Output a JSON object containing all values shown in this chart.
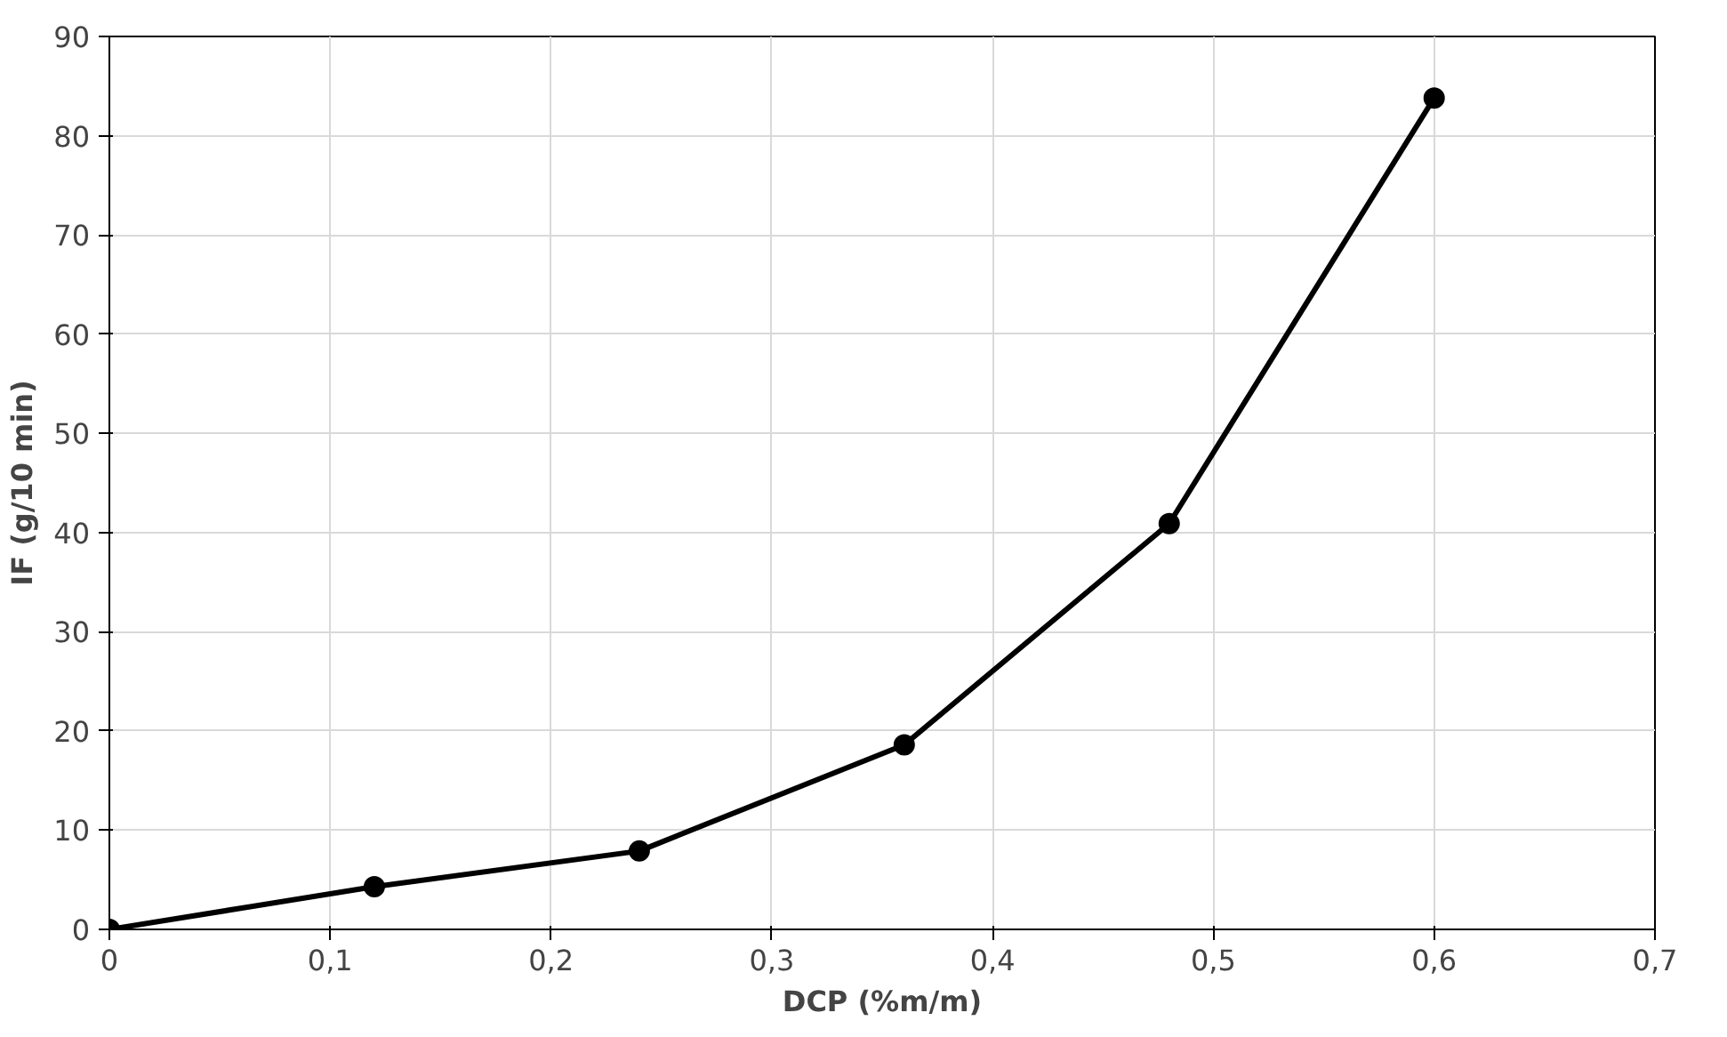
{
  "chart_data": {
    "type": "line",
    "xlabel": "DCP (%m/m)",
    "ylabel": "IF (g/10 min)",
    "x": [
      0,
      0.12,
      0.24,
      0.36,
      0.48,
      0.6
    ],
    "series": [
      {
        "color": "#000000",
        "values": [
          0,
          4.3,
          7.9,
          18.6,
          40.9,
          83.8
        ]
      }
    ],
    "xlim": [
      0,
      0.7
    ],
    "ylim": [
      0,
      90
    ],
    "xticks": [
      0,
      {
        "value": 0.1,
        "label": "0,1"
      },
      {
        "value": 0.2,
        "label": "0,2"
      },
      {
        "value": 0.3,
        "label": "0,3"
      },
      {
        "value": 0.4,
        "label": "0,4"
      },
      {
        "value": 0.5,
        "label": "0,5"
      },
      {
        "value": 0.6,
        "label": "0,6"
      },
      {
        "value": 0.7,
        "label": "0,7"
      }
    ],
    "yticks": [
      0,
      10,
      20,
      30,
      40,
      50,
      60,
      70,
      80,
      90
    ],
    "grid": true,
    "marker": "circle",
    "line_style": "solid"
  }
}
